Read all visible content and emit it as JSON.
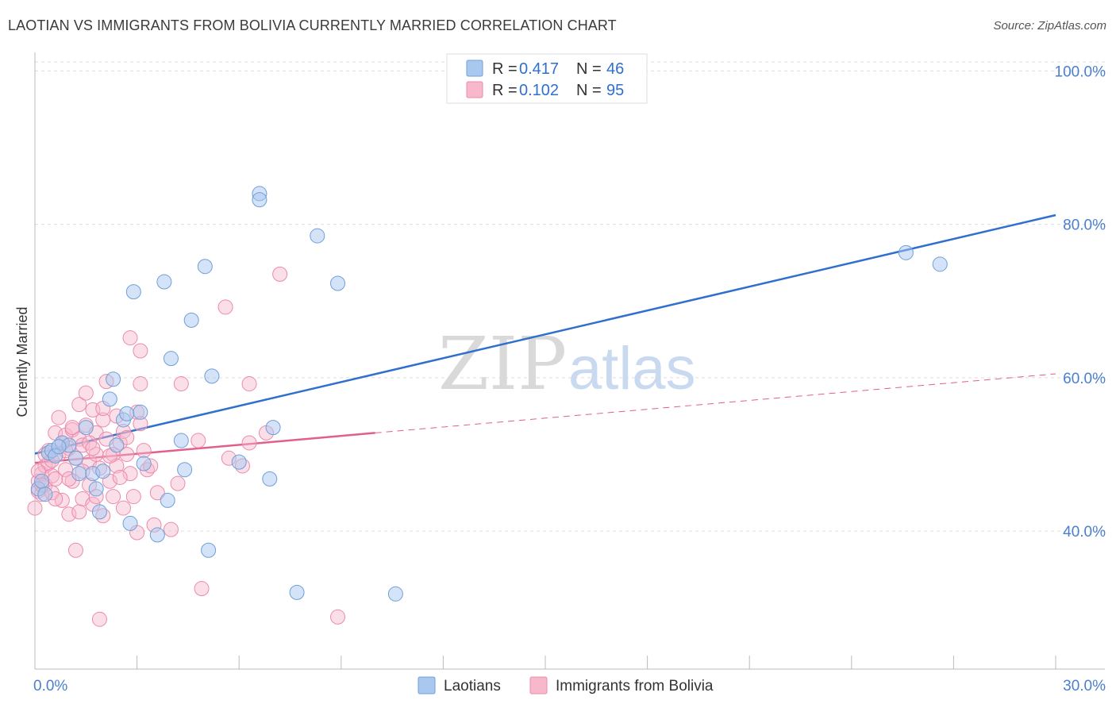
{
  "header": {
    "title": "LAOTIAN VS IMMIGRANTS FROM BOLIVIA CURRENTLY MARRIED CORRELATION CHART",
    "source": "Source: ZipAtlas.com"
  },
  "watermark": {
    "zip": "ZIP",
    "atlas": "atlas"
  },
  "legend": {
    "rows": [
      {
        "r_label": "R = ",
        "r_value": "0.417",
        "n_label": "N = ",
        "n_value": "46"
      },
      {
        "r_label": "R = ",
        "r_value": "0.102",
        "n_label": "N = ",
        "n_value": "95"
      }
    ]
  },
  "colors": {
    "blue_fill": "#a9c8f0",
    "blue_stroke": "#6f9fd8",
    "blue_line": "#2f6fce",
    "pink_fill": "#f7b8cc",
    "pink_stroke": "#ec8aaa",
    "pink_line": "#e0608a",
    "grid": "#dddddd",
    "tick_text": "#4a7fcf"
  },
  "chart_data": {
    "type": "scatter",
    "title": "LAOTIAN VS IMMIGRANTS FROM BOLIVIA CURRENTLY MARRIED CORRELATION CHART",
    "ylabel": "Currently Married",
    "xlim": [
      0,
      30
    ],
    "ylim": [
      22,
      102
    ],
    "x_tick_labels": [
      "0.0%",
      "30.0%"
    ],
    "y_ticks": [
      40,
      60,
      80,
      100
    ],
    "y_tick_labels": [
      "40.0%",
      "60.0%",
      "80.0%",
      "100.0%"
    ],
    "grid": "horizontal dashed",
    "legend_position": "top-center",
    "series": [
      {
        "name": "Laotians",
        "color": "#a9c8f0",
        "trend": {
          "x": [
            0,
            30
          ],
          "y": [
            50.1,
            81.2
          ],
          "style": "solid"
        },
        "points": [
          [
            0.1,
            45.5
          ],
          [
            0.2,
            46.5
          ],
          [
            0.4,
            50.2
          ],
          [
            0.5,
            50.5
          ],
          [
            0.6,
            49.8
          ],
          [
            0.8,
            51.5
          ],
          [
            1.0,
            51.2
          ],
          [
            1.2,
            49.5
          ],
          [
            1.3,
            47.5
          ],
          [
            1.5,
            53.5
          ],
          [
            1.7,
            47.5
          ],
          [
            1.8,
            45.5
          ],
          [
            1.9,
            42.5
          ],
          [
            2.0,
            47.8
          ],
          [
            2.2,
            57.2
          ],
          [
            2.3,
            59.8
          ],
          [
            2.4,
            51.2
          ],
          [
            2.6,
            54.5
          ],
          [
            2.7,
            55.3
          ],
          [
            2.8,
            41.0
          ],
          [
            2.9,
            71.2
          ],
          [
            3.1,
            55.5
          ],
          [
            3.2,
            48.8
          ],
          [
            3.6,
            39.5
          ],
          [
            3.8,
            72.5
          ],
          [
            3.9,
            44.0
          ],
          [
            4.0,
            62.5
          ],
          [
            4.3,
            51.8
          ],
          [
            4.4,
            48.0
          ],
          [
            4.6,
            67.5
          ],
          [
            5.0,
            74.5
          ],
          [
            5.1,
            37.5
          ],
          [
            5.2,
            60.2
          ],
          [
            6.0,
            49.0
          ],
          [
            6.6,
            84.0
          ],
          [
            6.6,
            83.2
          ],
          [
            6.9,
            46.8
          ],
          [
            7.0,
            53.5
          ],
          [
            7.7,
            32.0
          ],
          [
            8.3,
            78.5
          ],
          [
            8.9,
            72.3
          ],
          [
            10.6,
            31.8
          ],
          [
            25.6,
            76.3
          ],
          [
            26.6,
            74.8
          ],
          [
            0.3,
            44.8
          ],
          [
            0.7,
            51.0
          ]
        ]
      },
      {
        "name": "Immigrants from Bolivia",
        "color": "#f7b8cc",
        "trend": {
          "x": [
            0,
            10
          ],
          "y": [
            48.9,
            52.8
          ],
          "style": "solid",
          "extended_to": [
            30,
            60.5
          ],
          "extended_style": "dashed"
        },
        "points": [
          [
            0.0,
            43.0
          ],
          [
            0.1,
            45.2
          ],
          [
            0.1,
            46.5
          ],
          [
            0.2,
            47.5
          ],
          [
            0.2,
            44.8
          ],
          [
            0.3,
            48.5
          ],
          [
            0.3,
            46.0
          ],
          [
            0.4,
            50.5
          ],
          [
            0.4,
            48.8
          ],
          [
            0.5,
            47.2
          ],
          [
            0.5,
            45.0
          ],
          [
            0.6,
            46.8
          ],
          [
            0.6,
            52.8
          ],
          [
            0.7,
            50.0
          ],
          [
            0.7,
            54.8
          ],
          [
            0.8,
            44.0
          ],
          [
            0.8,
            51.5
          ],
          [
            0.9,
            48.0
          ],
          [
            0.9,
            52.5
          ],
          [
            1.0,
            50.8
          ],
          [
            1.0,
            42.2
          ],
          [
            1.1,
            53.2
          ],
          [
            1.1,
            46.5
          ],
          [
            1.2,
            49.5
          ],
          [
            1.2,
            37.5
          ],
          [
            1.3,
            56.5
          ],
          [
            1.3,
            52.0
          ],
          [
            1.4,
            44.2
          ],
          [
            1.4,
            51.2
          ],
          [
            1.5,
            58.0
          ],
          [
            1.5,
            53.8
          ],
          [
            1.6,
            49.0
          ],
          [
            1.6,
            46.0
          ],
          [
            1.7,
            55.8
          ],
          [
            1.7,
            43.5
          ],
          [
            1.8,
            52.8
          ],
          [
            1.8,
            50.0
          ],
          [
            1.9,
            28.5
          ],
          [
            1.9,
            48.2
          ],
          [
            2.0,
            54.5
          ],
          [
            2.0,
            42.0
          ],
          [
            2.1,
            59.5
          ],
          [
            2.1,
            52.0
          ],
          [
            2.2,
            46.5
          ],
          [
            2.3,
            50.0
          ],
          [
            2.3,
            44.5
          ],
          [
            2.4,
            55.0
          ],
          [
            2.4,
            48.5
          ],
          [
            2.5,
            51.5
          ],
          [
            2.6,
            43.0
          ],
          [
            2.6,
            53.0
          ],
          [
            2.7,
            50.0
          ],
          [
            2.8,
            65.2
          ],
          [
            2.8,
            47.5
          ],
          [
            2.9,
            44.5
          ],
          [
            3.0,
            39.8
          ],
          [
            3.0,
            55.5
          ],
          [
            3.1,
            63.5
          ],
          [
            3.1,
            59.2
          ],
          [
            3.2,
            50.5
          ],
          [
            3.3,
            48.0
          ],
          [
            3.5,
            40.8
          ],
          [
            3.6,
            45.0
          ],
          [
            4.0,
            40.2
          ],
          [
            4.2,
            46.2
          ],
          [
            4.3,
            59.2
          ],
          [
            4.8,
            51.8
          ],
          [
            4.9,
            32.5
          ],
          [
            5.6,
            69.2
          ],
          [
            5.7,
            49.5
          ],
          [
            6.3,
            59.2
          ],
          [
            6.3,
            51.5
          ],
          [
            6.8,
            52.8
          ],
          [
            7.2,
            73.5
          ],
          [
            8.9,
            28.8
          ],
          [
            0.2,
            46.0
          ],
          [
            0.5,
            49.2
          ],
          [
            0.9,
            50.5
          ],
          [
            1.1,
            53.5
          ],
          [
            1.4,
            47.8
          ],
          [
            1.6,
            51.5
          ],
          [
            1.8,
            44.5
          ],
          [
            2.0,
            56.0
          ],
          [
            2.2,
            49.8
          ],
          [
            2.5,
            47.0
          ],
          [
            2.7,
            52.2
          ],
          [
            3.1,
            54.0
          ],
          [
            3.4,
            48.5
          ],
          [
            0.1,
            47.8
          ],
          [
            0.3,
            50.0
          ],
          [
            0.6,
            44.2
          ],
          [
            1.0,
            46.8
          ],
          [
            1.3,
            42.5
          ],
          [
            1.7,
            50.8
          ],
          [
            6.1,
            48.5
          ]
        ]
      }
    ]
  },
  "bottom_legend": {
    "items": [
      {
        "label": "Laotians"
      },
      {
        "label": "Immigrants from Bolivia"
      }
    ]
  }
}
